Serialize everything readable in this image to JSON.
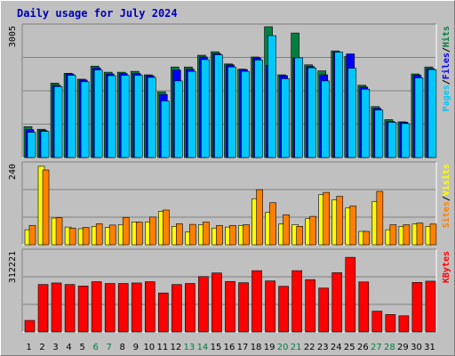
{
  "title": "Daily usage for July 2024",
  "colors": {
    "pages": "#00c8ff",
    "files": "#0000ff",
    "hits": "#008040",
    "sites": "#ff8000",
    "visits": "#ffff00",
    "kbytes": "#ff0000",
    "weekend": "#008040",
    "weekday": "#000000"
  },
  "chart_data": [
    {
      "type": "bar",
      "name": "pages-files-hits",
      "categories": [
        "1",
        "2",
        "3",
        "4",
        "5",
        "6",
        "7",
        "8",
        "9",
        "10",
        "11",
        "12",
        "13",
        "14",
        "15",
        "16",
        "17",
        "18",
        "19",
        "20",
        "21",
        "22",
        "23",
        "24",
        "25",
        "26",
        "27",
        "28",
        "29",
        "30",
        "31"
      ],
      "ymax_label": "3005",
      "ylim": [
        0,
        3005
      ],
      "legend": [
        "Pages",
        "/",
        "Files",
        "/",
        "Hits"
      ],
      "series": [
        {
          "name": "Hits",
          "values": [
            710,
            650,
            1710,
            1935,
            1800,
            2100,
            1960,
            1960,
            1980,
            1900,
            1510,
            2080,
            2080,
            2350,
            2430,
            2150,
            2030,
            2310,
            3005,
            1900,
            2860,
            2130,
            1990,
            2450,
            2320,
            1660,
            1170,
            870,
            820,
            1920,
            2080
          ]
        },
        {
          "name": "Files",
          "values": [
            640,
            620,
            1660,
            1920,
            1780,
            2060,
            1920,
            1930,
            1930,
            1880,
            1450,
            2010,
            2030,
            2310,
            2390,
            2130,
            2020,
            2290,
            2120,
            1880,
            2290,
            2090,
            1900,
            2420,
            2380,
            1620,
            1130,
            830,
            810,
            1890,
            2040
          ]
        },
        {
          "name": "Pages",
          "values": [
            580,
            600,
            1630,
            1890,
            1740,
            2010,
            1880,
            1890,
            1890,
            1840,
            1300,
            1760,
            1980,
            2250,
            2360,
            2080,
            1980,
            2240,
            2800,
            1810,
            2290,
            2060,
            1760,
            2420,
            2050,
            1570,
            1090,
            810,
            780,
            1830,
            2020
          ]
        }
      ]
    },
    {
      "type": "bar",
      "name": "sites-visits",
      "categories": [
        "1",
        "2",
        "3",
        "4",
        "5",
        "6",
        "7",
        "8",
        "9",
        "10",
        "11",
        "12",
        "13",
        "14",
        "15",
        "16",
        "17",
        "18",
        "19",
        "20",
        "21",
        "22",
        "23",
        "24",
        "25",
        "26",
        "27",
        "28",
        "29",
        "30",
        "31"
      ],
      "ymax_label": "240",
      "ylim": [
        0,
        240
      ],
      "legend": [
        "Sites",
        "/",
        "Visits"
      ],
      "series": [
        {
          "name": "Visits",
          "values": [
            45,
            235,
            80,
            53,
            48,
            55,
            52,
            60,
            68,
            68,
            100,
            55,
            38,
            60,
            50,
            53,
            58,
            138,
            97,
            62,
            60,
            78,
            150,
            135,
            110,
            40,
            130,
            45,
            55,
            62,
            55
          ]
        },
        {
          "name": "Sites",
          "values": [
            58,
            224,
            81,
            50,
            52,
            63,
            59,
            82,
            68,
            83,
            104,
            63,
            61,
            68,
            58,
            58,
            60,
            165,
            126,
            90,
            55,
            85,
            157,
            145,
            116,
            40,
            160,
            60,
            60,
            65,
            62
          ]
        }
      ]
    },
    {
      "type": "bar",
      "name": "kbytes",
      "categories": [
        "1",
        "2",
        "3",
        "4",
        "5",
        "6",
        "7",
        "8",
        "9",
        "10",
        "11",
        "12",
        "13",
        "14",
        "15",
        "16",
        "17",
        "18",
        "19",
        "20",
        "21",
        "22",
        "23",
        "24",
        "25",
        "26",
        "27",
        "28",
        "29",
        "30",
        "31"
      ],
      "ymax_label": "312221",
      "ylim": [
        0,
        312221
      ],
      "legend": [
        "KBytes"
      ],
      "series": [
        {
          "name": "KBytes",
          "values": [
            45000,
            185000,
            191000,
            185000,
            179000,
            196000,
            189000,
            189000,
            191000,
            196000,
            152000,
            185000,
            189000,
            216000,
            230000,
            197000,
            192000,
            239000,
            199000,
            178000,
            239000,
            204000,
            171000,
            231000,
            291000,
            195000,
            81000,
            68000,
            63000,
            193000,
            198000
          ]
        }
      ]
    }
  ]
}
